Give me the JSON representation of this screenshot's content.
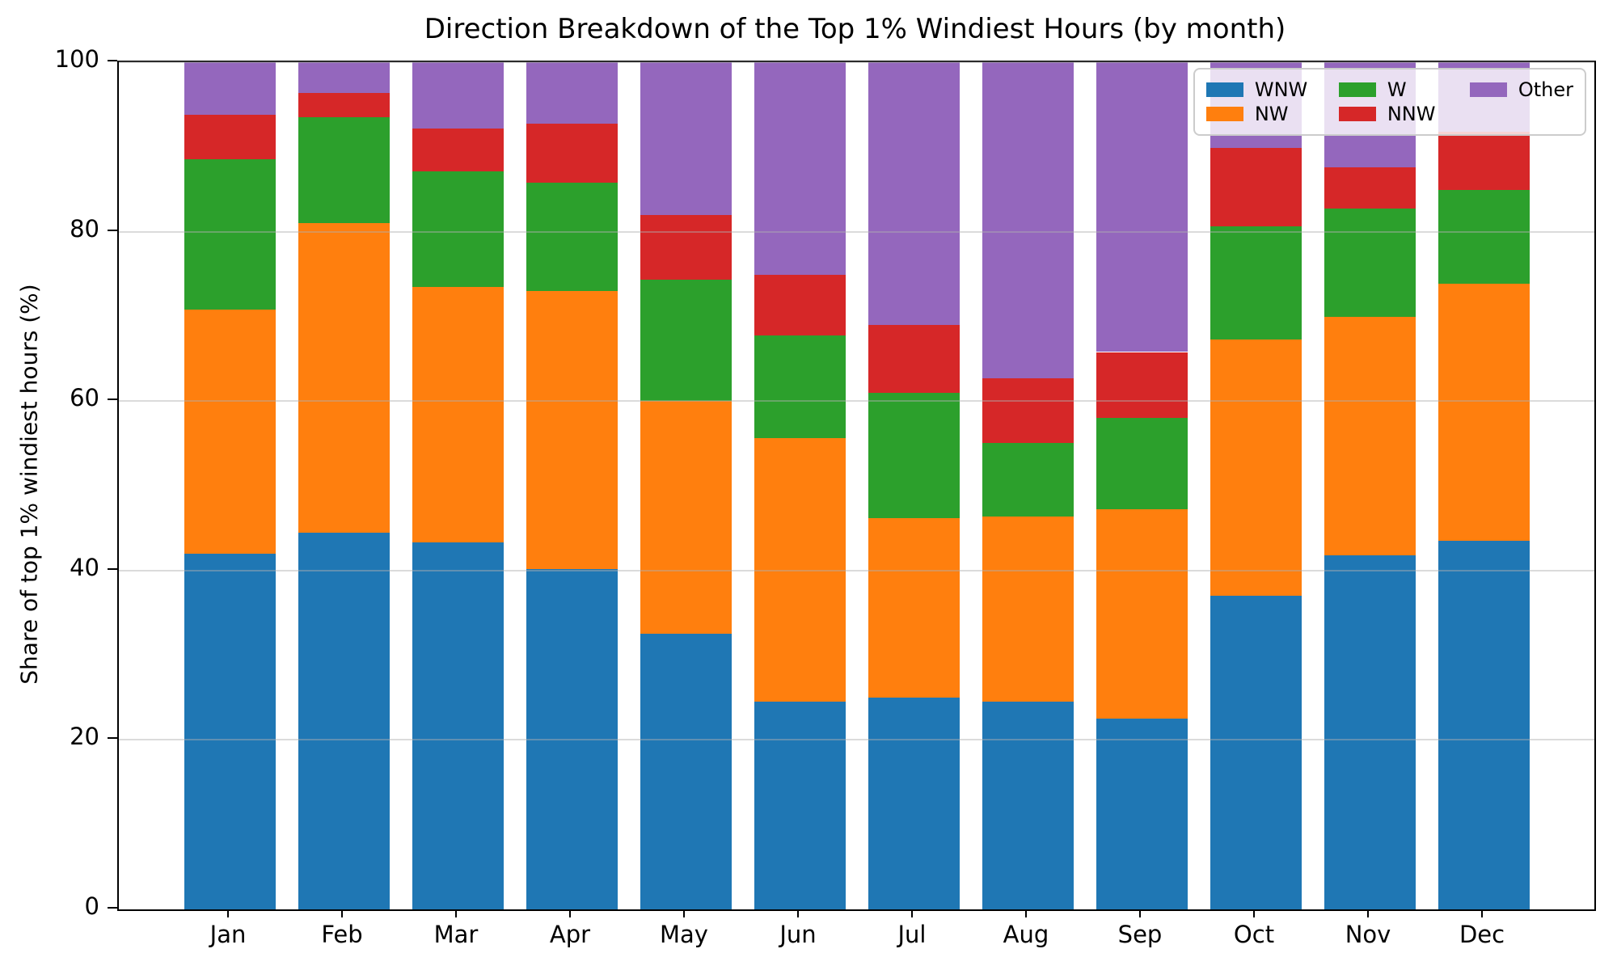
{
  "chart_data": {
    "type": "bar",
    "stacked": true,
    "title": "Direction Breakdown of the Top 1% Windiest Hours (by month)",
    "ylabel": "Share of top 1% windiest hours (%)",
    "xlabel": "",
    "ylim": [
      0,
      100
    ],
    "yticks": [
      0,
      20,
      40,
      60,
      80,
      100
    ],
    "grid": "horizontal",
    "legend": {
      "position": "upper right",
      "ncol": 3,
      "order": [
        "WNW",
        "NW",
        "W",
        "NNW",
        "Other"
      ]
    },
    "categories": [
      "Jan",
      "Feb",
      "Mar",
      "Apr",
      "May",
      "Jun",
      "Jul",
      "Aug",
      "Sep",
      "Oct",
      "Nov",
      "Dec"
    ],
    "series": [
      {
        "name": "WNW",
        "color": "#1f77b4",
        "values": [
          42.0,
          44.5,
          43.3,
          40.2,
          32.5,
          24.5,
          25.0,
          24.5,
          22.5,
          37.0,
          41.8,
          43.5
        ]
      },
      {
        "name": "NW",
        "color": "#ff7f0e",
        "values": [
          28.8,
          36.5,
          30.2,
          32.8,
          27.5,
          31.1,
          21.2,
          21.9,
          24.7,
          30.3,
          28.1,
          30.4
        ]
      },
      {
        "name": "W",
        "color": "#2ca02c",
        "values": [
          17.8,
          12.5,
          13.6,
          12.8,
          14.3,
          12.2,
          14.8,
          8.7,
          10.8,
          13.3,
          12.8,
          11.0
        ]
      },
      {
        "name": "NNW",
        "color": "#d62728",
        "values": [
          5.2,
          2.9,
          5.1,
          7.0,
          7.7,
          7.1,
          8.0,
          7.6,
          7.8,
          9.3,
          4.9,
          6.9
        ]
      },
      {
        "name": "Other",
        "color": "#9467bd",
        "values": [
          6.2,
          3.6,
          7.8,
          7.2,
          18.0,
          25.1,
          31.0,
          37.3,
          34.2,
          10.1,
          12.4,
          8.2
        ]
      }
    ]
  }
}
